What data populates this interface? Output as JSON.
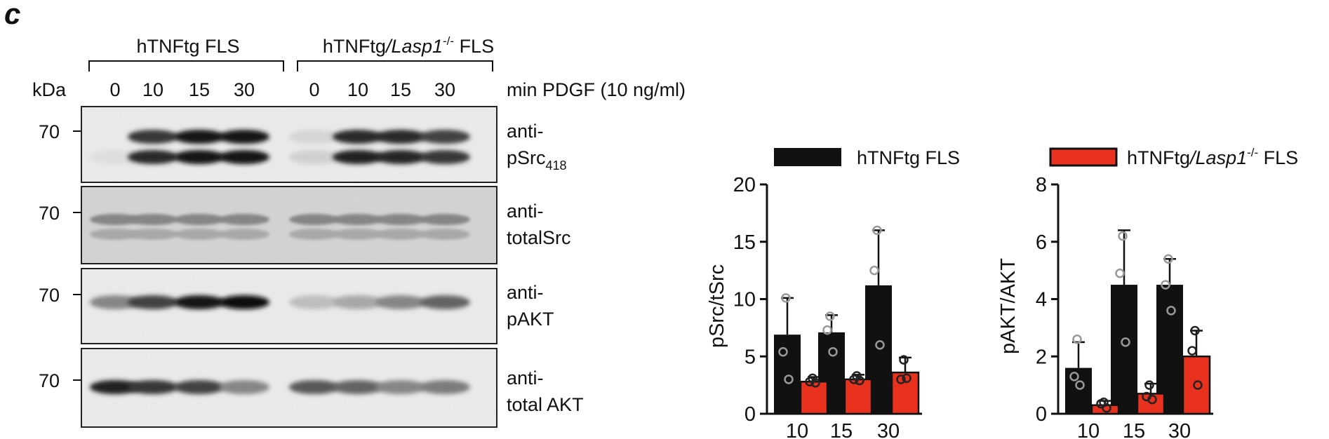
{
  "panel_label": "c",
  "blot": {
    "group_labels": [
      {
        "name": "hTNFtg FLS"
      },
      {
        "pre": "hTNFtg",
        "italic": "/Lasp1",
        "sup": "-/-",
        "post": " FLS"
      }
    ],
    "kda_label": "kDa",
    "time_points": [
      "0",
      "10",
      "15",
      "30",
      "0",
      "10",
      "15",
      "30"
    ],
    "time_caption": "min PDGF (10 ng/ml)",
    "marker_labels": [
      "70",
      "70",
      "70",
      "70"
    ],
    "rows": [
      {
        "line1": "anti-",
        "line2": "pSrc",
        "sub": "418"
      },
      {
        "line1": "anti-",
        "line2": "totalSrc",
        "sub": ""
      },
      {
        "line1": "anti-",
        "line2": "pAKT",
        "sub": ""
      },
      {
        "line1": "anti-",
        "line2": "total AKT",
        "sub": ""
      }
    ]
  },
  "legend": [
    {
      "name": "hTNFtg FLS",
      "color": "#111111"
    },
    {
      "pre": "hTNFtg",
      "italic": "/Lasp1",
      "sup": "-/-",
      "post": " FLS",
      "color": "#e8321e"
    }
  ],
  "chart_data": [
    {
      "type": "bar",
      "categories": [
        "10",
        "15",
        "30"
      ],
      "ylabel": "pSrc/tSrc",
      "ylim": [
        0,
        20
      ],
      "yticks": [
        "0",
        "5",
        "10",
        "15",
        "20"
      ],
      "series": [
        {
          "name": "hTNFtg FLS",
          "color": "#111111",
          "values": [
            6.9,
            7.1,
            11.2
          ],
          "err": [
            3.2,
            1.5,
            4.8
          ],
          "points": [
            [
              10.1,
              5.4,
              3.0
            ],
            [
              8.5,
              7.3,
              5.4
            ],
            [
              16.0,
              12.5,
              6.0
            ]
          ]
        },
        {
          "name": "hTNFtg/Lasp1-/- FLS",
          "color": "#e8321e",
          "values": [
            2.8,
            3.0,
            3.6
          ],
          "err": [
            0.4,
            0.4,
            1.3
          ],
          "points": [
            [
              3.1,
              2.8,
              2.7
            ],
            [
              3.3,
              3.0,
              2.9
            ],
            [
              4.7,
              3.0,
              3.1
            ]
          ]
        }
      ]
    },
    {
      "type": "bar",
      "categories": [
        "10",
        "15",
        "30"
      ],
      "ylabel": "pAKT/AKT",
      "ylim": [
        0,
        8
      ],
      "yticks": [
        "0",
        "2",
        "4",
        "6",
        "8"
      ],
      "series": [
        {
          "name": "hTNFtg FLS",
          "color": "#111111",
          "values": [
            1.6,
            4.5,
            4.5
          ],
          "err": [
            0.9,
            1.9,
            0.9
          ],
          "points": [
            [
              2.6,
              1.3,
              1.0
            ],
            [
              6.2,
              4.9,
              2.5
            ],
            [
              5.4,
              4.5,
              3.6
            ]
          ]
        },
        {
          "name": "hTNFtg/Lasp1-/- FLS",
          "color": "#e8321e",
          "values": [
            0.3,
            0.7,
            2.0
          ],
          "err": [
            0.15,
            0.35,
            0.9
          ],
          "points": [
            [
              0.4,
              0.35,
              0.2
            ],
            [
              1.0,
              0.6,
              0.5
            ],
            [
              2.9,
              2.2,
              1.0
            ]
          ]
        }
      ]
    }
  ]
}
